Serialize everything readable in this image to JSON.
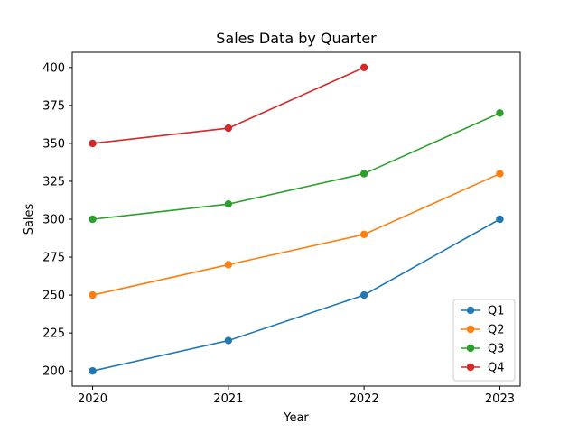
{
  "chart_data": {
    "type": "line",
    "title": "Sales Data by Quarter",
    "xlabel": "Year",
    "ylabel": "Sales",
    "x": [
      2020,
      2021,
      2022,
      2023
    ],
    "x_tick_labels": [
      "2020",
      "2021",
      "2022",
      "2023"
    ],
    "xlim": [
      2019.85,
      2023.15
    ],
    "ylim": [
      190,
      410
    ],
    "y_ticks": [
      200,
      225,
      250,
      275,
      300,
      325,
      350,
      375,
      400
    ],
    "y_tick_labels": [
      "200",
      "225",
      "250",
      "275",
      "300",
      "325",
      "350",
      "375",
      "400"
    ],
    "grid": false,
    "legend_position": "bottom-right",
    "series": [
      {
        "name": "Q1",
        "color": "#1f77b4",
        "values": [
          200,
          220,
          250,
          300
        ]
      },
      {
        "name": "Q2",
        "color": "#ff7f0e",
        "values": [
          250,
          270,
          290,
          330
        ]
      },
      {
        "name": "Q3",
        "color": "#2ca02c",
        "values": [
          300,
          310,
          330,
          370
        ]
      },
      {
        "name": "Q4",
        "color": "#d62728",
        "values": [
          350,
          360,
          400,
          null
        ]
      }
    ]
  }
}
